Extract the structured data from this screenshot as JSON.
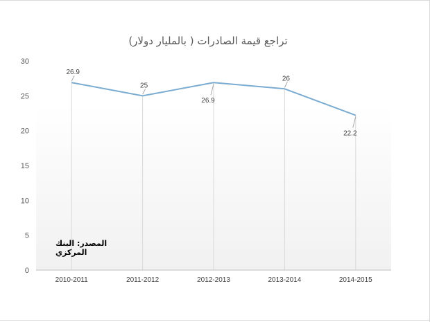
{
  "chart_data": {
    "type": "line",
    "title": "تراجع قيمة الصادرات ( بالمليار دولار)",
    "categories": [
      "2010-2011",
      "2011-2012",
      "2012-2013",
      "2013-2014",
      "2014-2015"
    ],
    "values": [
      26.9,
      25,
      26.9,
      26,
      22.2
    ],
    "data_labels": [
      "26.9",
      "25",
      "26.9",
      "26",
      "22.2"
    ],
    "y_ticks": [
      "0",
      "5",
      "10",
      "15",
      "20",
      "25",
      "30"
    ],
    "ylim": [
      0,
      30
    ],
    "xlabel": "",
    "ylabel": "",
    "grid": "vertical",
    "line_color": "#7aabd0",
    "source_note": "المصدر: البنك المركزي"
  }
}
